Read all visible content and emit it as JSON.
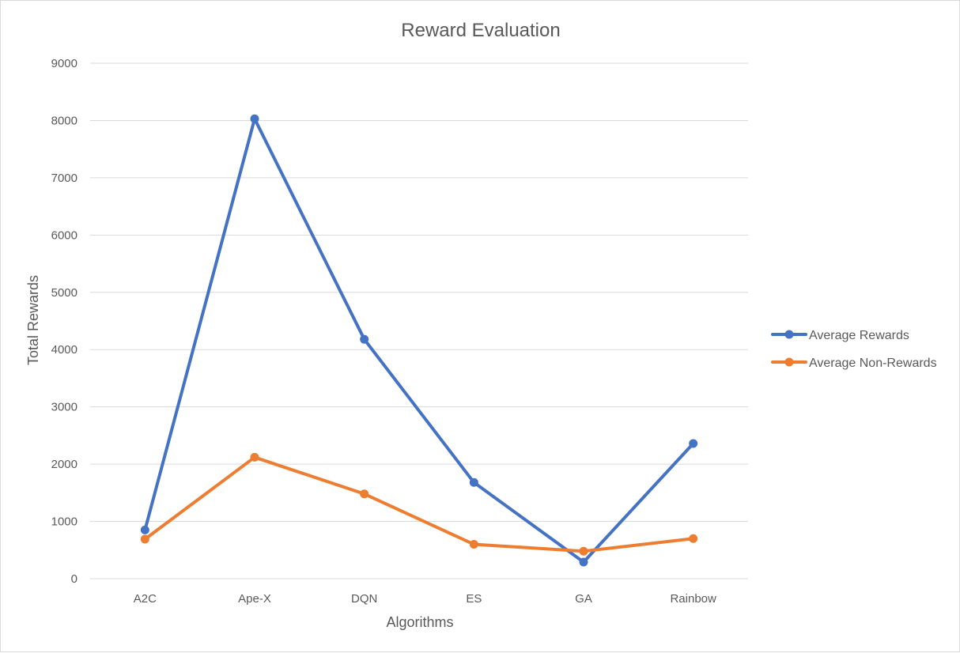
{
  "chart_data": {
    "type": "line",
    "title": "Reward Evaluation",
    "xlabel": "Algorithms",
    "ylabel": "Total Rewards",
    "categories": [
      "A2C",
      "Ape-X",
      "DQN",
      "ES",
      "GA",
      "Rainbow"
    ],
    "y_ticks": [
      "0",
      "1000",
      "2000",
      "3000",
      "4000",
      "5000",
      "6000",
      "7000",
      "8000",
      "9000"
    ],
    "ylim": [
      0,
      9000
    ],
    "grid": true,
    "legend_position": "right",
    "series": [
      {
        "name": "Average Rewards",
        "color": "#4472c4",
        "values": [
          850,
          8030,
          4180,
          1680,
          290,
          2360
        ]
      },
      {
        "name": "Average Non-Rewards",
        "color": "#ed7d31",
        "values": [
          690,
          2120,
          1480,
          600,
          480,
          700
        ]
      }
    ]
  }
}
